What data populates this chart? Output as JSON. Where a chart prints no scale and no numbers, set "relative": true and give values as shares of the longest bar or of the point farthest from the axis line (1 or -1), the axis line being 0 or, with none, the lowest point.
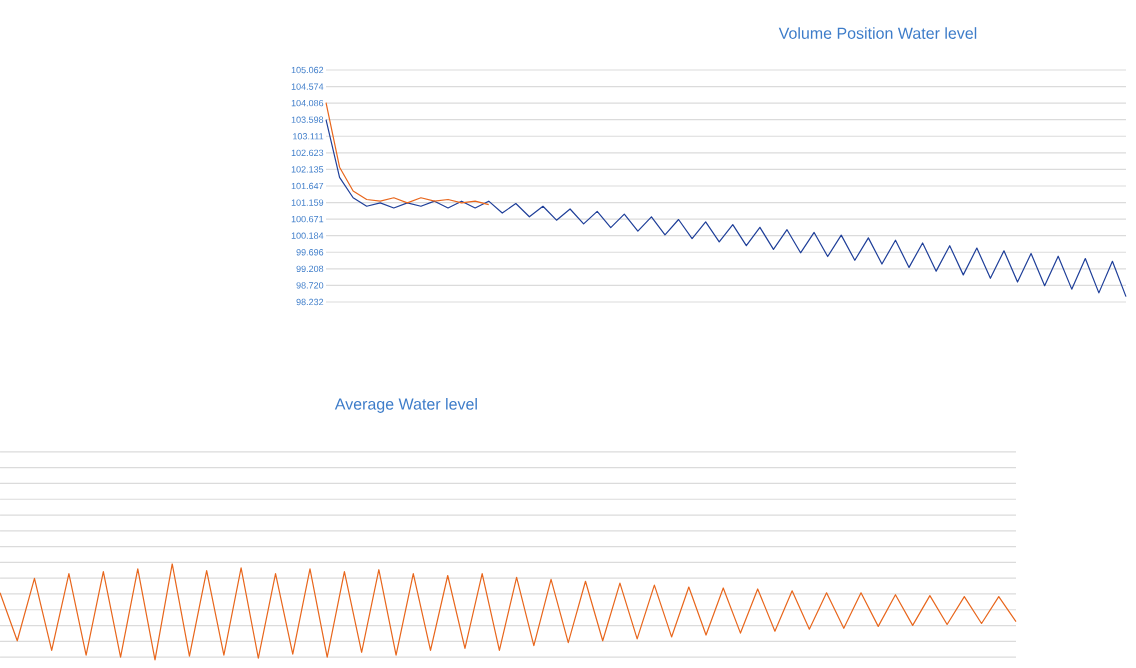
{
  "chart_data": [
    {
      "type": "line",
      "title": "Volume Position Water level",
      "grid": "y",
      "tick_labels": "y",
      "categories": [
        null,
        null,
        null,
        null,
        null,
        null,
        null,
        null,
        null,
        null,
        null,
        null,
        null,
        null,
        null,
        null,
        null,
        null,
        null,
        null,
        null,
        null,
        null,
        null,
        null,
        null,
        null,
        null,
        null,
        null,
        null,
        null,
        null,
        null,
        null,
        null,
        null,
        null,
        null,
        null,
        null,
        null,
        null,
        null,
        null,
        null,
        null,
        null,
        null,
        null,
        null,
        null,
        null,
        null,
        null,
        null,
        null,
        null,
        null,
        null
      ],
      "ylim": [
        98.232,
        105.062
      ],
      "yticks": [
        105.062,
        104.574,
        104.086,
        103.598,
        103.111,
        102.623,
        102.135,
        101.647,
        101.159,
        100.671,
        100.184,
        99.696,
        99.208,
        {
          "value": 98.72,
          "label": "98.720"
        },
        98.232
      ],
      "series": [
        {
          "color": "#1f3f99",
          "values": [
            103.6,
            101.9,
            101.3,
            101.05,
            101.15,
            101.0,
            101.15,
            101.05,
            101.2,
            101.0,
            101.2,
            101.0,
            101.2,
            100.85,
            101.13,
            100.74,
            101.05,
            100.64,
            100.97,
            100.53,
            100.9,
            100.42,
            100.82,
            100.32,
            100.74,
            100.21,
            100.66,
            100.1,
            100.59,
            100.0,
            100.51,
            99.89,
            100.43,
            99.78,
            100.36,
            99.68,
            100.28,
            99.57,
            100.2,
            99.46,
            100.12,
            99.35,
            100.05,
            99.25,
            99.97,
            99.14,
            99.89,
            99.03,
            99.82,
            98.93,
            99.74,
            98.82,
            99.66,
            98.71,
            99.58,
            98.61,
            99.51,
            98.5,
            99.43,
            98.39
          ]
        },
        {
          "color": "#e8661c",
          "values": [
            104.1,
            102.2,
            101.5,
            101.25,
            101.2,
            101.3,
            101.15,
            101.3,
            101.2,
            101.25,
            101.15,
            101.2,
            101.1,
            null,
            null,
            null,
            null,
            null,
            null,
            null,
            null,
            null,
            null,
            null,
            null,
            null,
            null,
            null,
            null,
            null,
            null,
            null,
            null,
            null,
            null,
            null,
            null,
            null,
            null,
            null,
            null,
            null,
            null,
            null,
            null,
            null,
            null,
            null,
            null,
            null,
            null,
            null,
            null,
            null,
            null,
            null,
            null,
            null,
            null,
            null
          ]
        }
      ]
    },
    {
      "type": "line",
      "title": "Average Water level",
      "relative": true,
      "grid": "y",
      "tick_labels": false,
      "categories": [
        null,
        null,
        null,
        null,
        null,
        null,
        null,
        null,
        null,
        null,
        null,
        null,
        null,
        null,
        null,
        null,
        null,
        null,
        null,
        null,
        null,
        null,
        null,
        null,
        null,
        null,
        null,
        null,
        null,
        null,
        null,
        null,
        null,
        null,
        null,
        null,
        null,
        null,
        null,
        null,
        null,
        null,
        null,
        null,
        null,
        null,
        null,
        null,
        null,
        null,
        null,
        null,
        null,
        null,
        null,
        null,
        null,
        null,
        null,
        null
      ],
      "series": [
        {
          "color": "#e8661c",
          "values": [
            0.7,
            0.2,
            0.85,
            0.1,
            0.9,
            0.05,
            0.92,
            0.03,
            0.95,
            0.0,
            1.0,
            0.04,
            0.93,
            0.05,
            0.96,
            0.02,
            0.9,
            0.06,
            0.95,
            0.03,
            0.92,
            0.08,
            0.94,
            0.05,
            0.9,
            0.1,
            0.88,
            0.12,
            0.9,
            0.1,
            0.86,
            0.15,
            0.84,
            0.18,
            0.82,
            0.2,
            0.8,
            0.22,
            0.78,
            0.24,
            0.76,
            0.26,
            0.75,
            0.28,
            0.74,
            0.3,
            0.72,
            0.32,
            0.7,
            0.33,
            0.7,
            0.35,
            0.68,
            0.36,
            0.67,
            0.37,
            0.66,
            0.38,
            0.66,
            0.4
          ]
        }
      ]
    }
  ]
}
